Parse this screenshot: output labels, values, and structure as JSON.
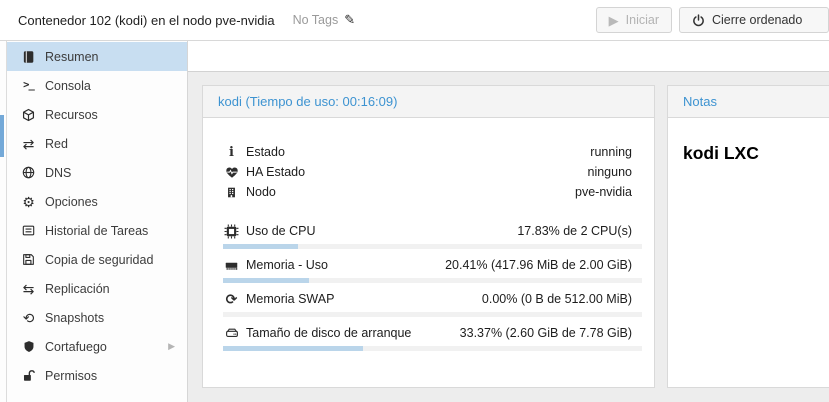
{
  "header": {
    "title": "Contenedor 102 (kodi) en el nodo pve-nvidia",
    "tags_label": "No Tags",
    "buttons": {
      "start": "Iniciar",
      "shutdown": "Cierre ordenado"
    }
  },
  "icons": {
    "terminal": ">_",
    "exchange": "⇄",
    "gear": "⚙",
    "retweet": "⇆",
    "history": "⟲",
    "refresh": "⟳",
    "info": "i",
    "chevron_right": "▶",
    "pencil": "✎",
    "play": "▶"
  },
  "sidebar": {
    "items": [
      {
        "label": "Resumen",
        "icon": "book",
        "selected": true
      },
      {
        "label": "Consola",
        "icon": "terminal",
        "selected": false
      },
      {
        "label": "Recursos",
        "icon": "cube",
        "selected": false
      },
      {
        "label": "Red",
        "icon": "exchange",
        "selected": false
      },
      {
        "label": "DNS",
        "icon": "globe",
        "selected": false
      },
      {
        "label": "Opciones",
        "icon": "gear",
        "selected": false
      },
      {
        "label": "Historial de Tareas",
        "icon": "task-list",
        "selected": false
      },
      {
        "label": "Copia de seguridad",
        "icon": "floppy",
        "selected": false
      },
      {
        "label": "Replicación",
        "icon": "retweet",
        "selected": false
      },
      {
        "label": "Snapshots",
        "icon": "history",
        "selected": false
      },
      {
        "label": "Cortafuego",
        "icon": "shield",
        "selected": false,
        "has_submenu": true
      },
      {
        "label": "Permisos",
        "icon": "unlock",
        "selected": false
      }
    ]
  },
  "status_panel": {
    "title": "kodi (Tiempo de uso: 00:16:09)",
    "status_rows": [
      {
        "icon": "info",
        "label": "Estado",
        "value": "running"
      },
      {
        "icon": "heartbeat",
        "label": "HA Estado",
        "value": "ninguno"
      },
      {
        "icon": "building",
        "label": "Nodo",
        "value": "pve-nvidia"
      }
    ],
    "usage_rows": [
      {
        "icon": "microchip",
        "label": "Uso de CPU",
        "value": "17.83% de 2 CPU(s)",
        "percent": 17.83
      },
      {
        "icon": "memory",
        "label": "Memoria - Uso",
        "value": "20.41% (417.96 MiB de 2.00 GiB)",
        "percent": 20.41
      },
      {
        "icon": "refresh",
        "label": "Memoria SWAP",
        "value": "0.00% (0 B de 512.00 MiB)",
        "percent": 0
      },
      {
        "icon": "hdd",
        "label": "Tamaño de disco de arranque",
        "value": "33.37% (2.60 GiB de 7.78 GiB)",
        "percent": 33.37
      }
    ]
  },
  "notes_panel": {
    "title": "Notas",
    "content": "kodi LXC"
  },
  "colors": {
    "accent_blue": "#3d93d1",
    "selected_item_bg": "#c8def1",
    "progress_fill": "#bad5ea",
    "tree_selection": "#74a9d8"
  }
}
